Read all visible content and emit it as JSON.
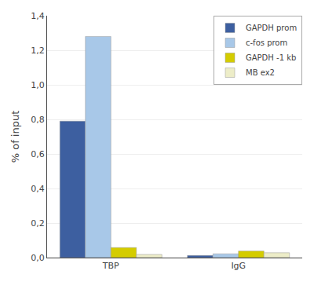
{
  "chart_data": {
    "type": "bar",
    "categories": [
      "TBP",
      "IgG"
    ],
    "series": [
      {
        "name": "GAPDH prom",
        "color": "#3D5FA0",
        "values": [
          0.79,
          0.012
        ]
      },
      {
        "name": "c-fos prom",
        "color": "#A8C8E8",
        "values": [
          1.28,
          0.022
        ]
      },
      {
        "name": "GAPDH -1 kb",
        "color": "#D4CC00",
        "values": [
          0.058,
          0.038
        ]
      },
      {
        "name": "MB ex2",
        "color": "#EDEDC8",
        "values": [
          0.018,
          0.028
        ]
      }
    ],
    "y_label": "% of input",
    "ylim": [
      0,
      1.4
    ],
    "yticks": [
      {
        "value": 0.0,
        "label": "0,0"
      },
      {
        "value": 0.2,
        "label": "0,2"
      },
      {
        "value": 0.4,
        "label": "0,4"
      },
      {
        "value": 0.6,
        "label": "0,6"
      },
      {
        "value": 0.8,
        "label": "0,8"
      },
      {
        "value": 1.0,
        "label": "1,0"
      },
      {
        "value": 1.2,
        "label": "1,2"
      },
      {
        "value": 1.4,
        "label": "1,4"
      }
    ],
    "grid": true,
    "legend": "upper right"
  }
}
